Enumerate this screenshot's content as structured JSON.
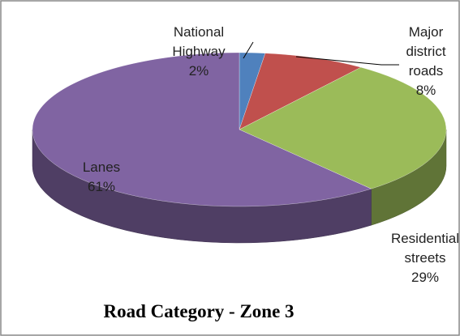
{
  "chart_data": {
    "type": "pie",
    "title": "Road Category - Zone 3",
    "categories": [
      "National Highway",
      "Major district roads",
      "Residential streets",
      "Lanes"
    ],
    "values": [
      2,
      8,
      29,
      61
    ],
    "value_labels": [
      "2%",
      "8%",
      "29%",
      "61%"
    ],
    "colors": [
      "#4f81bd",
      "#c0504d",
      "#9bbb59",
      "#8064a2"
    ]
  }
}
